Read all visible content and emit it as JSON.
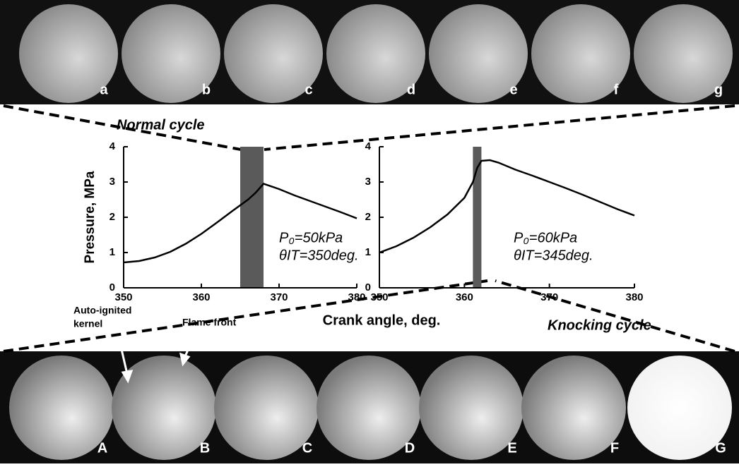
{
  "chart_data": [
    {
      "type": "line",
      "title": "Normal cycle",
      "ylabel": "Pressure, MPa",
      "xlabel": "Crank angle, deg.",
      "x": [
        350,
        352,
        354,
        356,
        358,
        360,
        362,
        364,
        366,
        367,
        368,
        370,
        372,
        374,
        376,
        378,
        380
      ],
      "values": [
        0.72,
        0.76,
        0.86,
        1.02,
        1.25,
        1.53,
        1.85,
        2.18,
        2.5,
        2.7,
        2.95,
        2.8,
        2.62,
        2.46,
        2.3,
        2.14,
        1.97
      ],
      "color": "#000000",
      "highlight": [
        365,
        368
      ],
      "highlight_color": "#5a5a5a",
      "xlim": [
        350,
        380
      ],
      "ylim": [
        0,
        4
      ],
      "xticks": [
        350,
        360,
        370,
        380
      ],
      "yticks": [
        0,
        1,
        2,
        3,
        4
      ],
      "annotation": [
        "P₀=50kPa",
        "θIT=350deg."
      ]
    },
    {
      "type": "line",
      "title": "Knocking cycle",
      "x": [
        350,
        352,
        354,
        356,
        358,
        360,
        361,
        361.5,
        362,
        363,
        364,
        366,
        368,
        370,
        372,
        374,
        376,
        378,
        380
      ],
      "values": [
        1.0,
        1.18,
        1.42,
        1.72,
        2.08,
        2.55,
        3.0,
        3.4,
        3.6,
        3.62,
        3.55,
        3.35,
        3.18,
        3.0,
        2.82,
        2.63,
        2.43,
        2.23,
        2.05
      ],
      "color": "#000000",
      "highlight": [
        361,
        362
      ],
      "highlight_color": "#5a5a5a",
      "xlim": [
        350,
        380
      ],
      "ylim": [
        0,
        4
      ],
      "xticks": [
        350,
        360,
        370,
        380
      ],
      "yticks": [
        0,
        1,
        2,
        3,
        4
      ],
      "annotation": [
        "P₀=60kPa",
        "θIT=345deg."
      ]
    }
  ],
  "top_frames": [
    "a",
    "b",
    "c",
    "d",
    "e",
    "f",
    "g"
  ],
  "bottom_frames": [
    "A",
    "B",
    "C",
    "D",
    "E",
    "F",
    "G"
  ],
  "callouts": {
    "kernel": [
      "Auto-ignited",
      "kernel"
    ],
    "flame": "Flame front"
  }
}
